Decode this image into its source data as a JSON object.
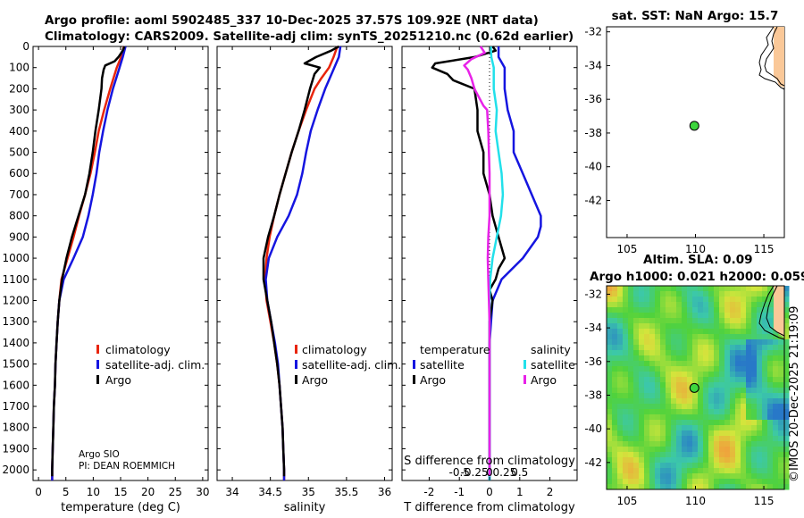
{
  "titles": {
    "line1": "Argo profile: aoml 5902485_337 10-Dec-2025 37.57S 109.92E (NRT data)",
    "line2": "Climatology: CARS2009. Satellite-adj clim: synTS_20251210.nc (0.62d earlier)",
    "map_top": "sat. SST: NaN Argo: 15.7",
    "map_bottom_1": "Altim. SLA: 0.09",
    "map_bottom_2": "Argo h1000: 0.021 h2000: 0.059",
    "watermark": "©IMOS 20-Dec-2025 21:19:09"
  },
  "colors": {
    "climatology": "#e8250c",
    "satellite": "#1515e0",
    "argo": "#000000",
    "sal_sat": "#22e0ea",
    "sal_argo": "#e822e8",
    "land": "#fac898",
    "float": "#3dd63d"
  },
  "labels": {
    "pi1": "Argo SIO",
    "pi2": "PI: DEAN ROEMMICH"
  },
  "chart_data": [
    {
      "type": "line",
      "panel": "temperature",
      "xlabel": "temperature (deg C)",
      "ylabel": "",
      "xlim": [
        -1,
        31
      ],
      "ylim": [
        2050,
        0
      ],
      "xticks": [
        0,
        5,
        10,
        15,
        20,
        25,
        30
      ],
      "yticks": [
        0,
        100,
        200,
        300,
        400,
        500,
        600,
        700,
        800,
        900,
        1000,
        1100,
        1200,
        1300,
        1400,
        1500,
        1600,
        1700,
        1800,
        1900,
        2000
      ],
      "legend": [
        "climatology",
        "satellite-adj. clim.",
        "Argo"
      ],
      "legend_position": "lower-right",
      "series": [
        {
          "name": "climatology",
          "color": "climatology",
          "depth": [
            0,
            50,
            100,
            150,
            200,
            300,
            400,
            500,
            600,
            700,
            800,
            900,
            1000,
            1100,
            1200,
            1300,
            1400,
            1500,
            1600,
            1700,
            1800,
            1900,
            2000,
            2050
          ],
          "values": [
            15.6,
            15.1,
            14.3,
            13.7,
            13.1,
            12.0,
            11.0,
            10.3,
            9.5,
            8.5,
            7.4,
            6.4,
            5.3,
            4.2,
            3.8,
            3.5,
            3.3,
            3.1,
            3.0,
            2.8,
            2.7,
            2.6,
            2.5,
            2.5
          ]
        },
        {
          "name": "satellite-adj. clim.",
          "color": "satellite",
          "depth": [
            0,
            50,
            100,
            150,
            200,
            300,
            400,
            500,
            600,
            700,
            800,
            900,
            1000,
            1100,
            1200,
            1300,
            1400,
            1500,
            1600,
            1700,
            1800,
            1900,
            2000,
            2050
          ],
          "values": [
            15.9,
            15.4,
            14.8,
            14.2,
            13.6,
            12.6,
            11.8,
            11.1,
            10.6,
            9.9,
            9.1,
            8.1,
            6.4,
            4.6,
            3.8,
            3.5,
            3.3,
            3.1,
            3.0,
            2.8,
            2.7,
            2.6,
            2.5,
            2.5
          ]
        },
        {
          "name": "Argo",
          "color": "argo",
          "depth": [
            0,
            20,
            50,
            70,
            90,
            110,
            150,
            200,
            300,
            400,
            500,
            600,
            700,
            800,
            900,
            1000,
            1100,
            1200,
            1300,
            1400,
            1500,
            1600,
            1700,
            1800,
            1900,
            2000,
            2030
          ],
          "values": [
            15.7,
            15.4,
            14.6,
            13.9,
            12.2,
            11.9,
            11.6,
            11.5,
            11.0,
            10.4,
            9.9,
            9.3,
            8.5,
            7.3,
            6.1,
            5.1,
            4.3,
            3.8,
            3.5,
            3.3,
            3.1,
            3.0,
            2.8,
            2.7,
            2.6,
            2.5,
            2.5
          ]
        }
      ]
    },
    {
      "type": "line",
      "panel": "salinity",
      "xlabel": "salinity",
      "xlim": [
        33.8,
        36.1
      ],
      "ylim": [
        2050,
        0
      ],
      "xticks": [
        34,
        34.5,
        35,
        35.5,
        36
      ],
      "xticklabels": [
        "34",
        "34.5",
        "35",
        "35.5",
        "36"
      ],
      "legend": [
        "climatology",
        "satellite-adj. clim.",
        "Argo"
      ],
      "legend_position": "lower-right",
      "series": [
        {
          "name": "climatology",
          "color": "climatology",
          "depth": [
            0,
            50,
            100,
            150,
            200,
            300,
            400,
            500,
            600,
            700,
            800,
            900,
            1000,
            1100,
            1200,
            1300,
            1400,
            1500,
            1600,
            1700,
            1800,
            1900,
            2000,
            2050
          ],
          "values": [
            35.38,
            35.33,
            35.27,
            35.17,
            35.08,
            34.97,
            34.87,
            34.78,
            34.7,
            34.62,
            34.55,
            34.49,
            34.45,
            34.43,
            34.45,
            34.5,
            34.55,
            34.59,
            34.62,
            34.64,
            34.66,
            34.67,
            34.68,
            34.68
          ]
        },
        {
          "name": "satellite-adj. clim.",
          "color": "satellite",
          "depth": [
            0,
            50,
            100,
            150,
            200,
            300,
            400,
            500,
            600,
            700,
            800,
            900,
            1000,
            1100,
            1200,
            1300,
            1400,
            1500,
            1600,
            1700,
            1800,
            1900,
            2000,
            2050
          ],
          "values": [
            35.42,
            35.4,
            35.34,
            35.28,
            35.22,
            35.12,
            35.03,
            34.97,
            34.92,
            34.85,
            34.74,
            34.59,
            34.48,
            34.44,
            34.46,
            34.51,
            34.56,
            34.6,
            34.62,
            34.64,
            34.66,
            34.67,
            34.68,
            34.68
          ]
        },
        {
          "name": "Argo",
          "color": "argo",
          "depth": [
            0,
            20,
            50,
            80,
            100,
            130,
            200,
            300,
            400,
            500,
            600,
            700,
            800,
            900,
            1000,
            1100,
            1200,
            1300,
            1400,
            1500,
            1600,
            1700,
            1800,
            1900,
            2000,
            2030
          ],
          "values": [
            35.4,
            35.3,
            35.1,
            34.95,
            35.15,
            35.08,
            35.02,
            34.95,
            34.87,
            34.78,
            34.7,
            34.62,
            34.55,
            34.47,
            34.41,
            34.41,
            34.46,
            34.51,
            34.55,
            34.59,
            34.62,
            34.64,
            34.66,
            34.67,
            34.68,
            34.68
          ]
        }
      ]
    },
    {
      "type": "line",
      "panel": "difference",
      "xlabel": "T difference from climatology",
      "xlabel_top": "S difference from climatology",
      "xlim": [
        -2.9,
        2.9
      ],
      "ylim": [
        2050,
        0
      ],
      "xticks": [
        -2,
        -1,
        0,
        1,
        2
      ],
      "xticklabels": [
        "-2",
        "-1",
        "0",
        "1",
        "2"
      ],
      "xticks_top": [
        -1,
        -0.5,
        0,
        0.5,
        1
      ],
      "xticklabels_top": [
        "-0.5",
        "-0.25",
        "0",
        "0.25",
        "0.5"
      ],
      "legend_left": [
        "temperature",
        "satellite",
        "Argo"
      ],
      "legend_right": [
        "salinity",
        "satellite",
        "Argo"
      ],
      "series": [
        {
          "name": "T satellite",
          "color": "satellite",
          "depth": [
            0,
            50,
            100,
            200,
            300,
            400,
            500,
            600,
            700,
            800,
            850,
            900,
            1000,
            1100,
            1200,
            1300,
            1400,
            1500,
            1600,
            1700,
            1800,
            1900,
            2000,
            2050
          ],
          "values": [
            0.3,
            0.3,
            0.5,
            0.5,
            0.6,
            0.8,
            0.8,
            1.1,
            1.4,
            1.7,
            1.7,
            1.6,
            1.1,
            0.4,
            0.1,
            0.05,
            0.0,
            0.0,
            0.0,
            0.0,
            0.0,
            0.0,
            0.0,
            0.0
          ]
        },
        {
          "name": "T Argo",
          "color": "argo",
          "depth": [
            0,
            20,
            50,
            80,
            100,
            130,
            160,
            200,
            300,
            400,
            500,
            600,
            700,
            800,
            900,
            1000,
            1050,
            1100,
            1150,
            1200,
            1300,
            1400,
            1500,
            1600,
            1700,
            1800,
            1900,
            2000,
            2030
          ],
          "values": [
            0.1,
            0.2,
            -0.5,
            -1.8,
            -1.9,
            -1.4,
            -1.2,
            -0.5,
            -0.4,
            -0.4,
            -0.2,
            -0.2,
            0.0,
            0.1,
            0.3,
            0.5,
            0.3,
            0.2,
            0.0,
            0.1,
            0.0,
            0.0,
            0.0,
            0.0,
            0.0,
            0.0,
            0.0,
            0.0,
            0.0
          ]
        },
        {
          "name": "S satellite",
          "color": "sal_sat",
          "depth": [
            0,
            50,
            100,
            200,
            300,
            400,
            500,
            600,
            700,
            800,
            900,
            1000,
            1100,
            1200,
            1300,
            1400,
            1500,
            1600,
            1700,
            1800,
            1900,
            2000,
            2050
          ],
          "values": [
            0.02,
            0.03,
            0.07,
            0.07,
            0.12,
            0.1,
            0.15,
            0.2,
            0.22,
            0.19,
            0.12,
            0.05,
            0.01,
            0.0,
            0.0,
            0.0,
            0.0,
            0.0,
            0.0,
            0.0,
            0.0,
            0.0,
            0.0
          ]
        },
        {
          "name": "S Argo",
          "color": "sal_argo",
          "depth": [
            0,
            30,
            60,
            90,
            110,
            150,
            200,
            280,
            300,
            400,
            500,
            600,
            700,
            800,
            900,
            1000,
            1100,
            1200,
            1300,
            1400,
            1500,
            1600,
            1700,
            1800,
            1900,
            2000,
            2030
          ],
          "values": [
            -0.15,
            -0.08,
            -0.3,
            -0.42,
            -0.36,
            -0.3,
            -0.25,
            -0.1,
            -0.04,
            -0.02,
            -0.01,
            0.0,
            0.0,
            0.0,
            -0.02,
            -0.03,
            -0.02,
            -0.01,
            0.0,
            0.0,
            0.0,
            0.0,
            0.0,
            0.0,
            0.0,
            0.0,
            0.0
          ]
        }
      ]
    },
    {
      "type": "scatter",
      "panel": "map-sst",
      "title": "sat. SST: NaN Argo: 15.7",
      "xlim": [
        103.5,
        116.5
      ],
      "ylim": [
        -44.2,
        -31.7
      ],
      "xticks": [
        105,
        110,
        115
      ],
      "yticks": [
        -32,
        -34,
        -36,
        -38,
        -40,
        -42
      ],
      "float_position": {
        "lon": 109.92,
        "lat": -37.57
      }
    },
    {
      "type": "heatmap",
      "panel": "map-sla",
      "title": "Altim. SLA: 0.09",
      "xlim": [
        103.5,
        116.5
      ],
      "ylim": [
        -43.6,
        -31.5
      ],
      "xticks": [
        105,
        110,
        115
      ],
      "yticks": [
        -32,
        -34,
        -36,
        -38,
        -40,
        -42
      ],
      "float_position": {
        "lon": 109.92,
        "lat": -37.57
      }
    }
  ]
}
